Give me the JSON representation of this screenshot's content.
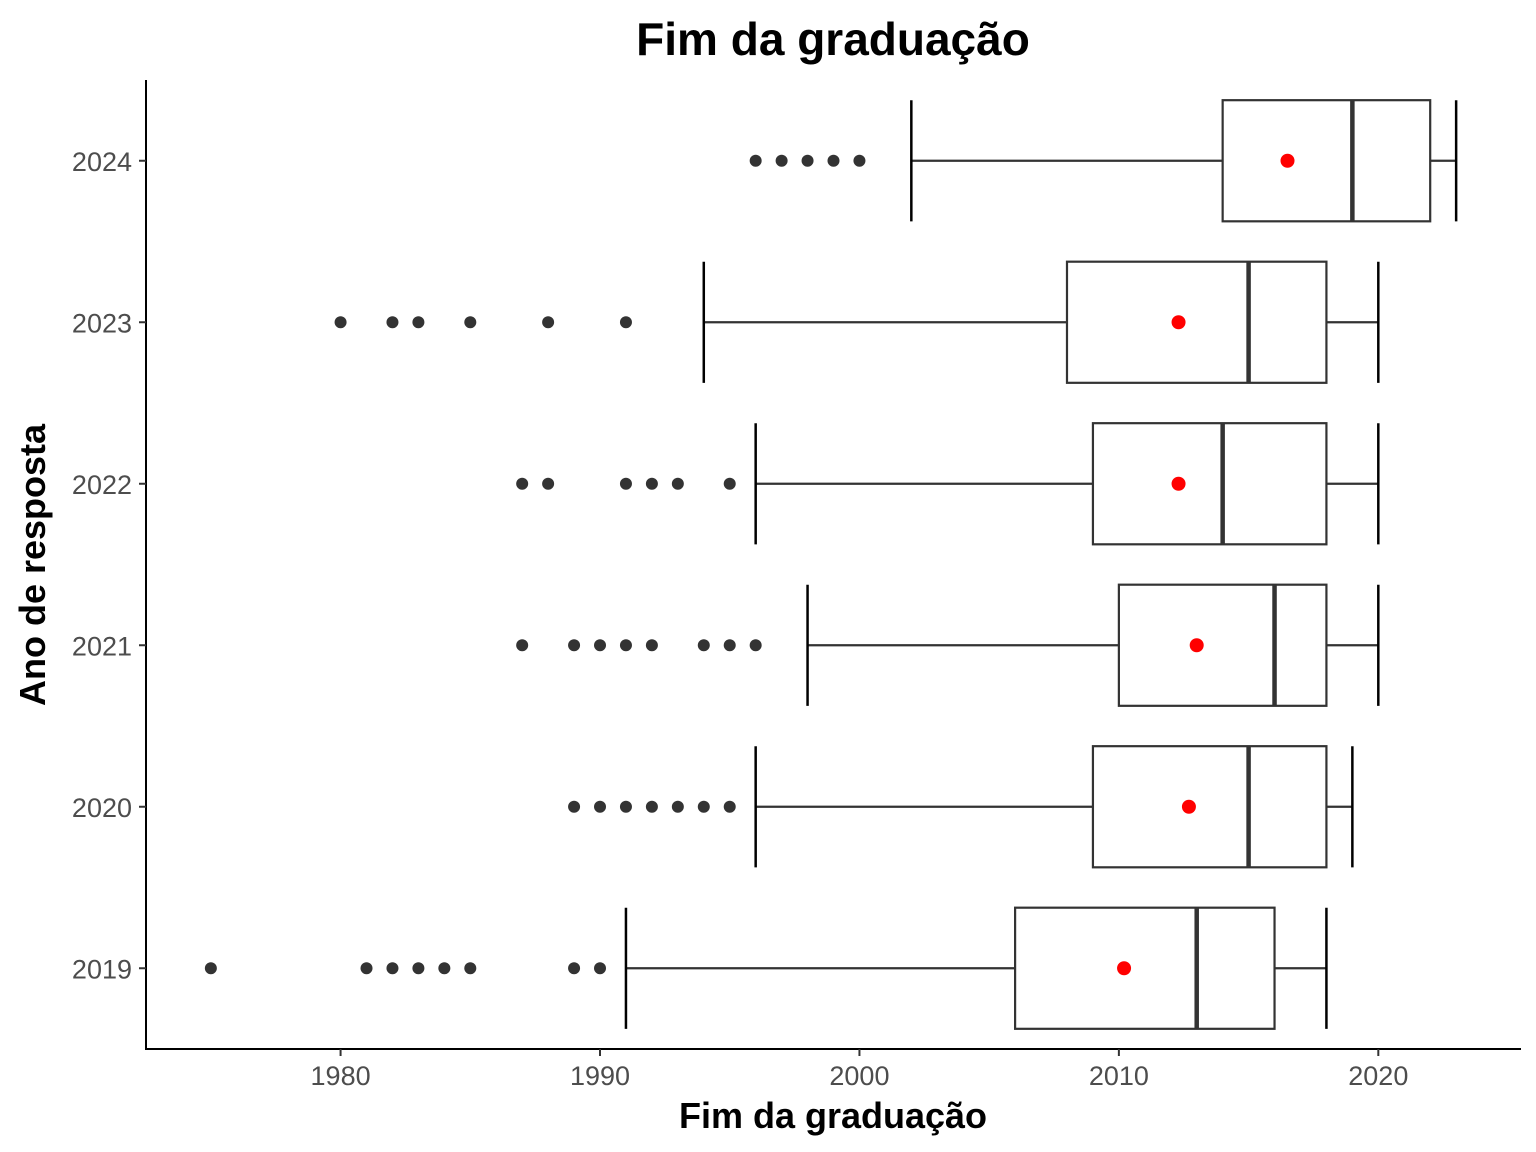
{
  "chart_data": {
    "type": "boxplot",
    "orientation": "horizontal",
    "title": "Fim da graduação",
    "xlabel": "Fim da graduação",
    "ylabel": "Ano de resposta",
    "xlim": [
      1972.5,
      2025.5
    ],
    "xticks": [
      1980,
      1990,
      2000,
      2010,
      2020
    ],
    "grid": false,
    "legend": "none",
    "colors": {
      "box_line": "#333333",
      "mean_point": "#ff0000",
      "outlier": "#333333"
    },
    "categories": [
      "2019",
      "2020",
      "2021",
      "2022",
      "2023",
      "2024"
    ],
    "series": [
      {
        "category": "2019",
        "whisker_low": 1991,
        "q1": 2006,
        "median": 2013,
        "q3": 2016,
        "whisker_high": 2018,
        "mean": 2010.2,
        "outliers": [
          1975,
          1981,
          1982,
          1983,
          1984,
          1985,
          1989,
          1990
        ]
      },
      {
        "category": "2020",
        "whisker_low": 1996,
        "q1": 2009,
        "median": 2015,
        "q3": 2018,
        "whisker_high": 2019,
        "mean": 2012.7,
        "outliers": [
          1989,
          1990,
          1991,
          1992,
          1993,
          1994,
          1995
        ]
      },
      {
        "category": "2021",
        "whisker_low": 1998,
        "q1": 2010,
        "median": 2016,
        "q3": 2018,
        "whisker_high": 2020,
        "mean": 2013,
        "outliers": [
          1987,
          1989,
          1990,
          1991,
          1992,
          1994,
          1995,
          1996
        ]
      },
      {
        "category": "2022",
        "whisker_low": 1996,
        "q1": 2009,
        "median": 2014,
        "q3": 2018,
        "whisker_high": 2020,
        "mean": 2012.3,
        "outliers": [
          1987,
          1988,
          1991,
          1992,
          1993,
          1995
        ]
      },
      {
        "category": "2023",
        "whisker_low": 1994,
        "q1": 2008,
        "median": 2015,
        "q3": 2018,
        "whisker_high": 2020,
        "mean": 2012.3,
        "outliers": [
          1980,
          1982,
          1983,
          1985,
          1988,
          1991
        ]
      },
      {
        "category": "2024",
        "whisker_low": 2002,
        "q1": 2014,
        "median": 2019,
        "q3": 2022,
        "whisker_high": 2023,
        "mean": 2016.5,
        "outliers": [
          1996,
          1997,
          1998,
          1999,
          2000
        ]
      }
    ]
  }
}
